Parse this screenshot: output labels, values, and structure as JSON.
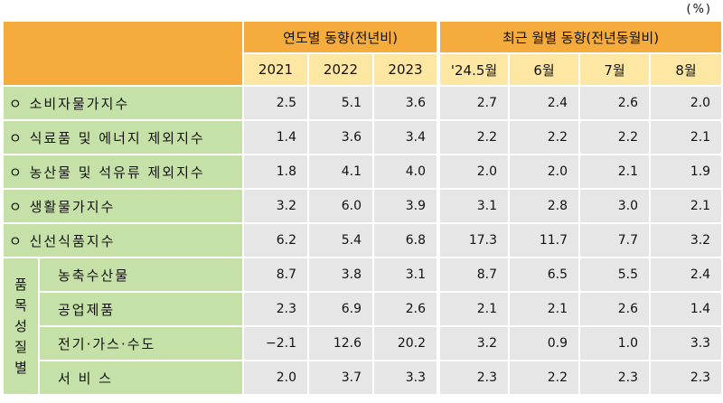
{
  "unit": "(%)",
  "header": {
    "group_annual": "연도별 동향(전년비)",
    "group_monthly": "최근 월별 동향(전년동월비)",
    "columns": [
      "2021",
      "2022",
      "2023",
      "'24.5월",
      "6월",
      "7월",
      "8월"
    ]
  },
  "rows": [
    {
      "label": "ㅇ  소비자물가지수",
      "values": [
        "2.5",
        "5.1",
        "3.6",
        "2.7",
        "2.4",
        "2.6",
        "2.0"
      ]
    },
    {
      "label": "ㅇ  식료품 및 에너지 제외지수",
      "values": [
        "1.4",
        "3.6",
        "3.4",
        "2.2",
        "2.2",
        "2.2",
        "2.1"
      ]
    },
    {
      "label": "ㅇ  농산물 및 석유류 제외지수",
      "values": [
        "1.8",
        "4.1",
        "4.0",
        "2.0",
        "2.0",
        "2.1",
        "1.9"
      ]
    },
    {
      "label": "ㅇ  생활물가지수",
      "values": [
        "3.2",
        "6.0",
        "3.9",
        "3.1",
        "2.8",
        "3.0",
        "2.1"
      ]
    },
    {
      "label": "ㅇ  신선식품지수",
      "values": [
        "6.2",
        "5.4",
        "6.8",
        "17.3",
        "11.7",
        "7.7",
        "3.2"
      ]
    }
  ],
  "group_label": [
    "품",
    "목",
    "성",
    "질",
    "별"
  ],
  "sub_rows": [
    {
      "label": "농축수산물",
      "values": [
        "8.7",
        "3.8",
        "3.1",
        "8.7",
        "6.5",
        "5.5",
        "2.4"
      ]
    },
    {
      "label": "공업제품",
      "values": [
        "2.3",
        "6.9",
        "2.6",
        "2.1",
        "2.1",
        "2.6",
        "1.4"
      ]
    },
    {
      "label": "전기·가스·수도",
      "values": [
        "−2.1",
        "12.6",
        "20.2",
        "3.2",
        "0.9",
        "1.0",
        "3.3"
      ]
    },
    {
      "label": "서 비 스",
      "values": [
        "2.0",
        "3.7",
        "3.3",
        "2.3",
        "2.2",
        "2.3",
        "2.3"
      ]
    }
  ]
}
